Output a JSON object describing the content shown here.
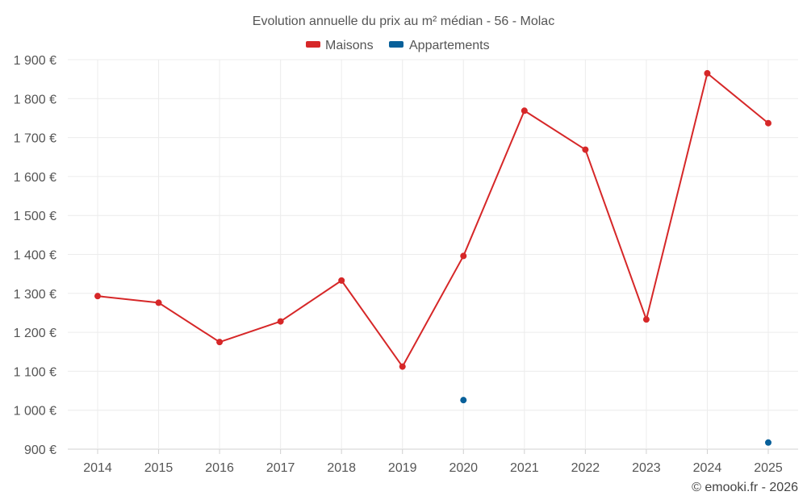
{
  "chart_data": {
    "type": "line",
    "title": "Evolution annuelle du prix au m² médian - 56 - Molac",
    "categories": [
      "2014",
      "2015",
      "2016",
      "2017",
      "2018",
      "2019",
      "2020",
      "2021",
      "2022",
      "2023",
      "2024",
      "2025"
    ],
    "ylim": [
      900,
      1900
    ],
    "yticks": [
      900,
      1000,
      1100,
      1200,
      1300,
      1400,
      1500,
      1600,
      1700,
      1800,
      1900
    ],
    "ytick_labels": [
      "900 €",
      "1 000 €",
      "1 100 €",
      "1 200 €",
      "1 300 €",
      "1 400 €",
      "1 500 €",
      "1 600 €",
      "1 700 €",
      "1 800 €",
      "1 900 €"
    ],
    "grid": true,
    "legend_position": "top-center",
    "series": [
      {
        "name": "Maisons",
        "color": "#d62728",
        "values": [
          1293,
          1276,
          1175,
          1228,
          1333,
          1112,
          1396,
          1769,
          1669,
          1233,
          1865,
          1737
        ]
      },
      {
        "name": "Appartements",
        "color": "#08609a",
        "values": [
          null,
          null,
          null,
          null,
          null,
          null,
          1026,
          null,
          null,
          null,
          null,
          917
        ]
      }
    ],
    "credit": "© emooki.fr - 2026"
  }
}
